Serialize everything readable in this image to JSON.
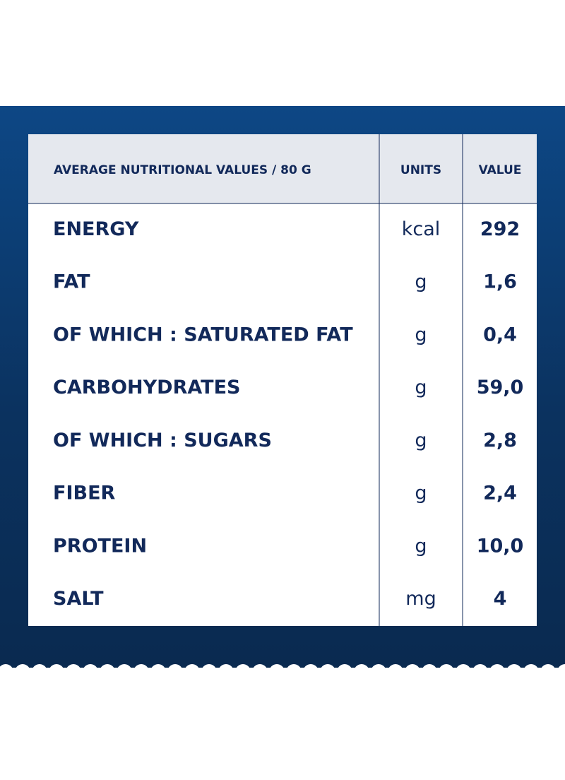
{
  "table": {
    "header": [
      "AVERAGE NUTRITIONAL VALUES / 80 G",
      "UNITS",
      "VALUE"
    ],
    "rows": [
      [
        "ENERGY",
        "kcal",
        "292"
      ],
      [
        "FAT",
        "g",
        "1,6"
      ],
      [
        "OF WHICH : SATURATED FAT",
        "g",
        "0,4"
      ],
      [
        "CARBOHYDRATES",
        "g",
        "59,0"
      ],
      [
        "OF WHICH : SUGARS",
        "g",
        "2,8"
      ],
      [
        "FIBER",
        "g",
        "2,4"
      ],
      [
        "PROTEIN",
        "g",
        "10,0"
      ],
      [
        "SALT",
        "mg",
        "4"
      ]
    ]
  }
}
